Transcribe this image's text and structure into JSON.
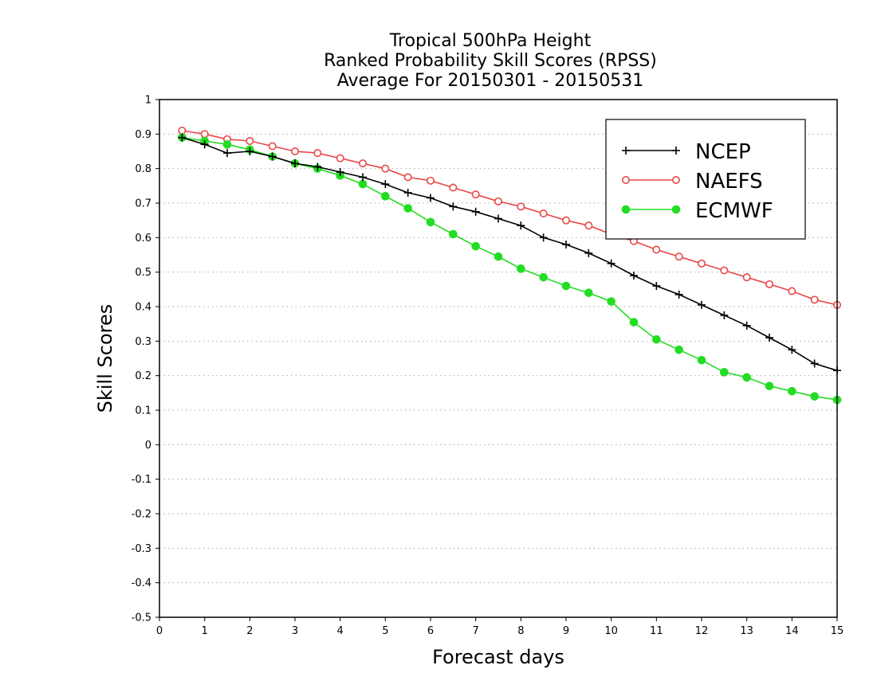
{
  "chart_data": {
    "type": "line",
    "title_lines": [
      "Tropical 500hPa Height",
      "Ranked Probability Skill Scores (RPSS)",
      "Average For 20150301 - 20150531"
    ],
    "xlabel": "Forecast days",
    "ylabel": "Skill Scores",
    "xlim": [
      0,
      15
    ],
    "ylim": [
      -0.5,
      1
    ],
    "x_ticks": [
      "0",
      "1",
      "2",
      "3",
      "4",
      "5",
      "6",
      "7",
      "8",
      "9",
      "10",
      "11",
      "12",
      "13",
      "14",
      "15"
    ],
    "y_ticks": [
      "1",
      "0.9",
      "0.8",
      "0.7",
      "0.6",
      "0.5",
      "0.4",
      "0.3",
      "0.2",
      "0.1",
      "0",
      "-0.1",
      "-0.2",
      "-0.3",
      "-0.4",
      "-0.5"
    ],
    "grid": "horizontal dotted",
    "legend_position": "top-right",
    "x": [
      0.5,
      1,
      1.5,
      2,
      2.5,
      3,
      3.5,
      4,
      4.5,
      5,
      5.5,
      6,
      6.5,
      7,
      7.5,
      8,
      8.5,
      9,
      9.5,
      10,
      10.5,
      11,
      11.5,
      12,
      12.5,
      13,
      13.5,
      14,
      14.5,
      15
    ],
    "series": [
      {
        "name": "NCEP",
        "color": "#000000",
        "marker": "plus",
        "values": [
          0.89,
          0.87,
          0.845,
          0.85,
          0.835,
          0.815,
          0.805,
          0.79,
          0.775,
          0.755,
          0.73,
          0.715,
          0.69,
          0.675,
          0.655,
          0.635,
          0.6,
          0.58,
          0.555,
          0.525,
          0.49,
          0.46,
          0.435,
          0.405,
          0.375,
          0.345,
          0.31,
          0.275,
          0.235,
          0.215
        ]
      },
      {
        "name": "NAEFS",
        "color": "#e84848",
        "marker": "open-circle",
        "values": [
          0.91,
          0.9,
          0.885,
          0.88,
          0.865,
          0.85,
          0.845,
          0.83,
          0.815,
          0.8,
          0.775,
          0.765,
          0.745,
          0.725,
          0.705,
          0.69,
          0.67,
          0.65,
          0.635,
          0.61,
          0.59,
          0.565,
          0.545,
          0.525,
          0.505,
          0.485,
          0.465,
          0.445,
          0.42,
          0.405
        ]
      },
      {
        "name": "ECMWF",
        "color": "#22dd22",
        "marker": "filled-circle",
        "values": [
          0.89,
          0.88,
          0.87,
          0.855,
          0.835,
          0.815,
          0.8,
          0.78,
          0.755,
          0.72,
          0.685,
          0.645,
          0.61,
          0.575,
          0.545,
          0.51,
          0.485,
          0.46,
          0.44,
          0.415,
          0.355,
          0.305,
          0.275,
          0.245,
          0.21,
          0.195,
          0.17,
          0.155,
          0.14,
          0.13
        ]
      }
    ]
  }
}
